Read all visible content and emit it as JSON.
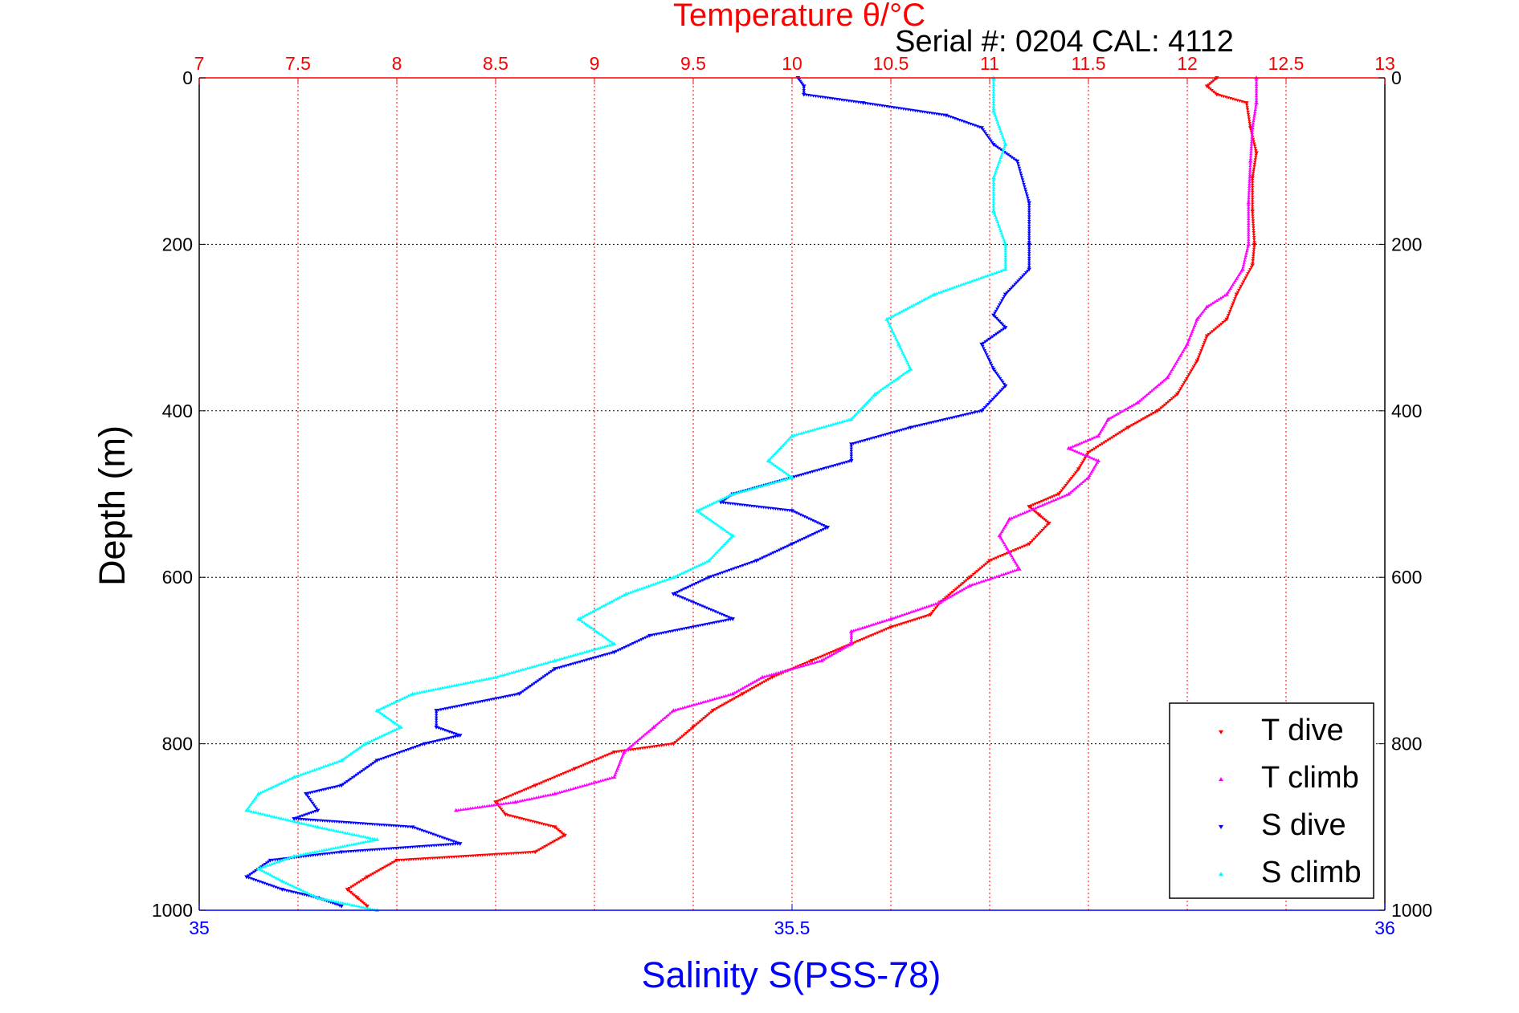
{
  "chart_data": {
    "type": "scatter",
    "title_top": "Temperature θ/°C",
    "subtitle": "Serial #: 0204  CAL: 4112",
    "xlabel": "Salinity S(PSS-78)",
    "ylabel": "Depth (m)",
    "x_top": {
      "label": "Temperature θ/°C",
      "range": [
        7,
        13
      ],
      "ticks": [
        "7",
        "7.5",
        "8",
        "8.5",
        "9",
        "9.5",
        "10",
        "10.5",
        "11",
        "11.5",
        "12",
        "12.5",
        "13"
      ],
      "color": "#ff0000"
    },
    "x_bottom": {
      "label": "Salinity S(PSS-78)",
      "range": [
        35,
        36
      ],
      "ticks": [
        "35",
        "35.5",
        "36"
      ],
      "color": "#0000ff"
    },
    "y": {
      "range": [
        0,
        1000
      ],
      "reversed": true,
      "ticks": [
        "0",
        "200",
        "400",
        "600",
        "800",
        "1000"
      ]
    },
    "grid": true,
    "legend_position": "bottom-right",
    "series": [
      {
        "name": "T dive",
        "axis": "temperature",
        "color": "#ff0000",
        "marker": "triangle-down",
        "points": [
          [
            12.15,
            0
          ],
          [
            12.1,
            10
          ],
          [
            12.15,
            20
          ],
          [
            12.3,
            30
          ],
          [
            12.32,
            60
          ],
          [
            12.35,
            90
          ],
          [
            12.33,
            120
          ],
          [
            12.33,
            160
          ],
          [
            12.34,
            200
          ],
          [
            12.33,
            225
          ],
          [
            12.25,
            260
          ],
          [
            12.2,
            290
          ],
          [
            12.1,
            310
          ],
          [
            12.05,
            340
          ],
          [
            11.95,
            380
          ],
          [
            11.85,
            400
          ],
          [
            11.7,
            420
          ],
          [
            11.5,
            450
          ],
          [
            11.45,
            470
          ],
          [
            11.35,
            500
          ],
          [
            11.2,
            515
          ],
          [
            11.25,
            525
          ],
          [
            11.3,
            535
          ],
          [
            11.2,
            560
          ],
          [
            11.0,
            580
          ],
          [
            10.9,
            600
          ],
          [
            10.75,
            630
          ],
          [
            10.7,
            645
          ],
          [
            10.5,
            660
          ],
          [
            10.3,
            680
          ],
          [
            10.1,
            700
          ],
          [
            9.9,
            720
          ],
          [
            9.75,
            740
          ],
          [
            9.6,
            760
          ],
          [
            9.5,
            780
          ],
          [
            9.4,
            800
          ],
          [
            9.1,
            810
          ],
          [
            8.9,
            830
          ],
          [
            8.7,
            850
          ],
          [
            8.5,
            870
          ],
          [
            8.55,
            885
          ],
          [
            8.8,
            900
          ],
          [
            8.85,
            910
          ],
          [
            8.7,
            930
          ],
          [
            8.0,
            940
          ],
          [
            7.85,
            960
          ],
          [
            7.75,
            975
          ],
          [
            7.8,
            985
          ],
          [
            7.85,
            995
          ]
        ]
      },
      {
        "name": "T climb",
        "axis": "temperature",
        "color": "#ff00ff",
        "marker": "triangle-up",
        "points": [
          [
            12.35,
            0
          ],
          [
            12.35,
            30
          ],
          [
            12.33,
            60
          ],
          [
            12.32,
            100
          ],
          [
            12.31,
            150
          ],
          [
            12.31,
            200
          ],
          [
            12.28,
            230
          ],
          [
            12.2,
            260
          ],
          [
            12.1,
            275
          ],
          [
            12.05,
            290
          ],
          [
            12.0,
            320
          ],
          [
            11.9,
            360
          ],
          [
            11.75,
            390
          ],
          [
            11.6,
            410
          ],
          [
            11.55,
            430
          ],
          [
            11.4,
            445
          ],
          [
            11.55,
            460
          ],
          [
            11.5,
            480
          ],
          [
            11.4,
            500
          ],
          [
            11.1,
            530
          ],
          [
            11.05,
            550
          ],
          [
            11.1,
            570
          ],
          [
            11.15,
            590
          ],
          [
            10.9,
            610
          ],
          [
            10.75,
            630
          ],
          [
            10.5,
            650
          ],
          [
            10.3,
            665
          ],
          [
            10.3,
            680
          ],
          [
            10.15,
            700
          ],
          [
            9.85,
            720
          ],
          [
            9.7,
            740
          ],
          [
            9.4,
            760
          ],
          [
            9.3,
            780
          ],
          [
            9.15,
            810
          ],
          [
            9.1,
            840
          ],
          [
            8.8,
            860
          ],
          [
            8.6,
            870
          ],
          [
            8.3,
            880
          ]
        ]
      },
      {
        "name": "S dive",
        "axis": "salinity",
        "color": "#0000ff",
        "marker": "triangle-down",
        "points": [
          [
            35.505,
            0
          ],
          [
            35.51,
            10
          ],
          [
            35.51,
            20
          ],
          [
            35.56,
            30
          ],
          [
            35.63,
            45
          ],
          [
            35.66,
            60
          ],
          [
            35.67,
            80
          ],
          [
            35.69,
            100
          ],
          [
            35.7,
            150
          ],
          [
            35.7,
            200
          ],
          [
            35.7,
            230
          ],
          [
            35.68,
            260
          ],
          [
            35.67,
            285
          ],
          [
            35.68,
            300
          ],
          [
            35.66,
            320
          ],
          [
            35.67,
            350
          ],
          [
            35.68,
            370
          ],
          [
            35.66,
            400
          ],
          [
            35.6,
            420
          ],
          [
            35.55,
            440
          ],
          [
            35.55,
            460
          ],
          [
            35.5,
            480
          ],
          [
            35.45,
            500
          ],
          [
            35.44,
            510
          ],
          [
            35.5,
            520
          ],
          [
            35.53,
            540
          ],
          [
            35.5,
            560
          ],
          [
            35.47,
            580
          ],
          [
            35.43,
            600
          ],
          [
            35.4,
            620
          ],
          [
            35.45,
            650
          ],
          [
            35.38,
            670
          ],
          [
            35.35,
            690
          ],
          [
            35.3,
            710
          ],
          [
            35.27,
            740
          ],
          [
            35.2,
            760
          ],
          [
            35.2,
            780
          ],
          [
            35.22,
            790
          ],
          [
            35.19,
            800
          ],
          [
            35.15,
            820
          ],
          [
            35.12,
            850
          ],
          [
            35.09,
            860
          ],
          [
            35.1,
            880
          ],
          [
            35.08,
            890
          ],
          [
            35.18,
            900
          ],
          [
            35.22,
            920
          ],
          [
            35.12,
            930
          ],
          [
            35.06,
            940
          ],
          [
            35.04,
            960
          ],
          [
            35.07,
            975
          ],
          [
            35.1,
            985
          ],
          [
            35.12,
            995
          ]
        ]
      },
      {
        "name": "S climb",
        "axis": "salinity",
        "color": "#00ffff",
        "marker": "triangle-up",
        "points": [
          [
            35.67,
            0
          ],
          [
            35.67,
            40
          ],
          [
            35.68,
            80
          ],
          [
            35.67,
            120
          ],
          [
            35.67,
            160
          ],
          [
            35.68,
            200
          ],
          [
            35.68,
            230
          ],
          [
            35.62,
            260
          ],
          [
            35.58,
            290
          ],
          [
            35.59,
            320
          ],
          [
            35.6,
            350
          ],
          [
            35.57,
            380
          ],
          [
            35.55,
            410
          ],
          [
            35.5,
            430
          ],
          [
            35.48,
            460
          ],
          [
            35.5,
            480
          ],
          [
            35.45,
            500
          ],
          [
            35.42,
            520
          ],
          [
            35.45,
            550
          ],
          [
            35.43,
            580
          ],
          [
            35.4,
            600
          ],
          [
            35.36,
            620
          ],
          [
            35.32,
            650
          ],
          [
            35.35,
            680
          ],
          [
            35.3,
            700
          ],
          [
            35.25,
            720
          ],
          [
            35.18,
            740
          ],
          [
            35.15,
            760
          ],
          [
            35.17,
            780
          ],
          [
            35.14,
            800
          ],
          [
            35.12,
            820
          ],
          [
            35.08,
            840
          ],
          [
            35.05,
            860
          ],
          [
            35.04,
            880
          ],
          [
            35.1,
            900
          ],
          [
            35.15,
            915
          ],
          [
            35.08,
            935
          ],
          [
            35.05,
            950
          ],
          [
            35.07,
            965
          ],
          [
            35.1,
            985
          ],
          [
            35.15,
            1000
          ]
        ]
      }
    ]
  }
}
